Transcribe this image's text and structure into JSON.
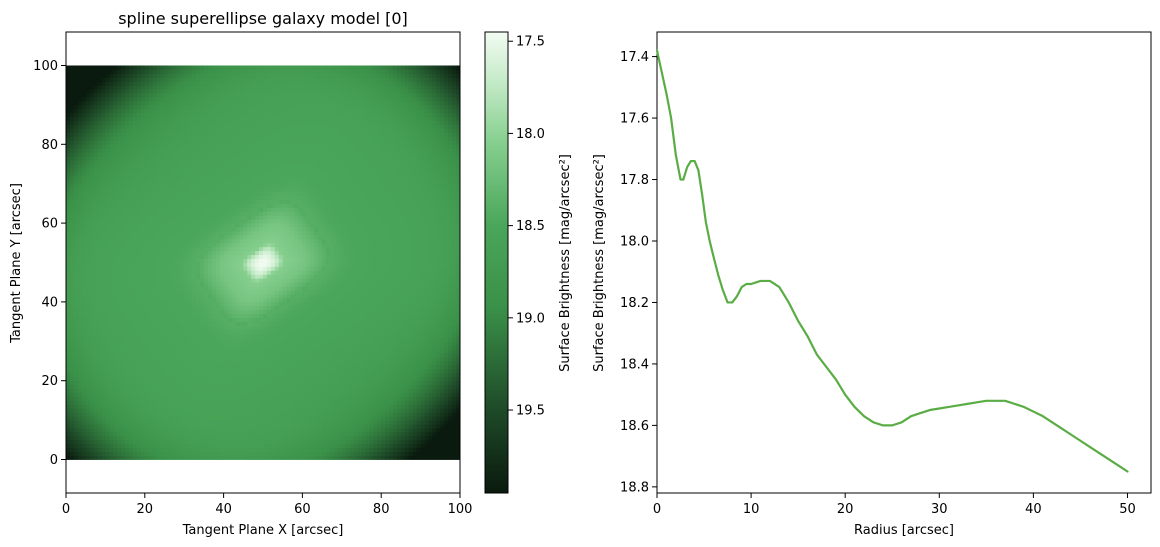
{
  "chart_data": [
    {
      "type": "heatmap",
      "title": "spline superellipse galaxy model [0]",
      "xlabel": "Tangent Plane X [arcsec]",
      "ylabel": "Tangent Plane Y [arcsec]",
      "xlim": [
        0,
        100
      ],
      "ylim": [
        -8.5,
        108.5
      ],
      "image_extent": [
        0,
        100,
        0,
        100
      ],
      "xticks": [
        0,
        20,
        40,
        60,
        80,
        100
      ],
      "yticks": [
        0,
        20,
        40,
        60,
        80,
        100
      ],
      "center": [
        50,
        50
      ],
      "position_angle_deg": 35,
      "core_brightness": 17.45,
      "edge_brightness": 19.95,
      "colormap": "Greens_r (dark green to white)",
      "colorbar": {
        "label": "Surface Brightness [mag/arcsec²]",
        "range": [
          17.45,
          19.95
        ],
        "ticks": [
          "17.5",
          "18.0",
          "18.5",
          "19.0",
          "19.5"
        ],
        "tick_values": [
          17.5,
          18.0,
          18.5,
          19.0,
          19.5
        ]
      }
    },
    {
      "type": "line",
      "xlabel": "Radius [arcsec]",
      "ylabel": "Surface Brightness [mag/arcsec²]",
      "xlim": [
        0,
        52.5
      ],
      "ylim": [
        18.82,
        17.32
      ],
      "y_inverted": true,
      "xticks": [
        0,
        10,
        20,
        30,
        40,
        50
      ],
      "yticks": [
        "17.4",
        "17.6",
        "17.8",
        "18.0",
        "18.2",
        "18.4",
        "18.6",
        "18.8"
      ],
      "ytick_values": [
        17.4,
        17.6,
        17.8,
        18.0,
        18.2,
        18.4,
        18.6,
        18.8
      ],
      "series": [
        {
          "color": "#5aac44",
          "x": [
            0,
            0.5,
            1,
            1.5,
            2,
            2.5,
            2.8,
            3.2,
            3.6,
            4,
            4.4,
            4.8,
            5.2,
            5.6,
            6,
            6.5,
            7,
            7.5,
            8,
            8.5,
            9,
            9.5,
            10,
            11,
            12,
            13,
            14,
            15,
            16,
            17,
            18,
            19,
            20,
            21,
            22,
            23,
            24,
            25,
            26,
            27,
            28,
            29,
            30,
            31,
            32,
            33,
            34,
            35,
            36,
            37,
            38,
            39,
            40,
            41,
            42,
            43,
            44,
            45,
            46,
            47,
            48,
            49,
            50
          ],
          "y": [
            17.38,
            17.45,
            17.52,
            17.6,
            17.72,
            17.8,
            17.8,
            17.76,
            17.74,
            17.74,
            17.77,
            17.85,
            17.94,
            18.0,
            18.05,
            18.11,
            18.16,
            18.2,
            18.2,
            18.18,
            18.15,
            18.14,
            18.14,
            18.13,
            18.13,
            18.15,
            18.2,
            18.26,
            18.31,
            18.37,
            18.41,
            18.45,
            18.5,
            18.54,
            18.57,
            18.59,
            18.6,
            18.6,
            18.59,
            18.57,
            18.56,
            18.55,
            18.545,
            18.54,
            18.535,
            18.53,
            18.525,
            18.52,
            18.52,
            18.52,
            18.53,
            18.54,
            18.555,
            18.57,
            18.59,
            18.61,
            18.63,
            18.65,
            18.67,
            18.69,
            18.71,
            18.73,
            18.75
          ]
        }
      ]
    }
  ]
}
